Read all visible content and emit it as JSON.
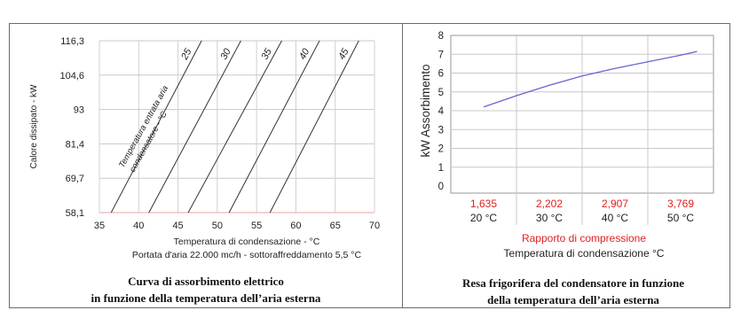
{
  "chart_data": [
    {
      "type": "line",
      "ylabel": "Calore dissipato - kW",
      "xlabel": "Temperatura di condensazione - °C",
      "subtitle": "Portata d'aria 22.000 mc/h - sottoraffreddamento 5,5 °C",
      "caption_line1": "Curva di assorbimento elettrico",
      "caption_line2": "in funzione della temperatura dell’aria esterna",
      "x_ticks": [
        "35",
        "40",
        "45",
        "50",
        "55",
        "60",
        "65",
        "70"
      ],
      "y_ticks": [
        "58,1",
        "69,7",
        "81,4",
        "93",
        "104,6",
        "116,3"
      ],
      "xlim": [
        35,
        70
      ],
      "ylim": [
        58.1,
        116.3
      ],
      "curve_annotation_line1": "Temperatura entrata aria",
      "curve_annotation_line2": "condensatore - °C",
      "grid": true,
      "series": [
        {
          "name": "25",
          "x": [
            36.5,
            48.0
          ],
          "y": [
            58.1,
            116.3
          ]
        },
        {
          "name": "30",
          "x": [
            41.3,
            53.0
          ],
          "y": [
            58.1,
            116.3
          ]
        },
        {
          "name": "35",
          "x": [
            46.3,
            58.2
          ],
          "y": [
            58.1,
            116.3
          ]
        },
        {
          "name": "40",
          "x": [
            51.5,
            63.0
          ],
          "y": [
            58.1,
            116.3
          ]
        },
        {
          "name": "45",
          "x": [
            56.7,
            68.0
          ],
          "y": [
            58.1,
            116.3
          ]
        }
      ]
    },
    {
      "type": "line",
      "ylabel": "kW Assorbimento",
      "xlabel": "Temperatura di condensazione °C",
      "xlabel_red": "Rapporto di compressione",
      "caption_line1": "Resa frigorifera del condensatore in funzione",
      "caption_line2": "della temperatura dell’aria esterna",
      "categories": [
        "20 °C",
        "30 °C",
        "40 °C",
        "50 °C"
      ],
      "ratios": [
        "1,635",
        "2,202",
        "2,907",
        "3,769"
      ],
      "y_ticks": [
        "0",
        "1",
        "2",
        "3",
        "4",
        "5",
        "6",
        "7",
        "8"
      ],
      "ylim": [
        0,
        8
      ],
      "grid": true,
      "line_color": "#6666cc",
      "series": [
        {
          "x": [
            20,
            25,
            30,
            35,
            40,
            45,
            50,
            52.5
          ],
          "y": [
            4.2,
            4.8,
            5.35,
            5.85,
            6.25,
            6.6,
            6.95,
            7.15
          ]
        }
      ]
    }
  ]
}
